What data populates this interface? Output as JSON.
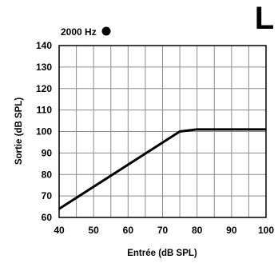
{
  "corner_label": "L",
  "chart_data": {
    "type": "line",
    "xlabel": "Entrée (dB SPL)",
    "ylabel": "Sortie (dB SPL)",
    "xlim": [
      40,
      100
    ],
    "ylim": [
      60,
      140
    ],
    "xticks": [
      40,
      50,
      60,
      70,
      80,
      90,
      100
    ],
    "yticks": [
      60,
      70,
      80,
      90,
      100,
      110,
      120,
      130,
      140
    ],
    "grid": true,
    "legend": {
      "placement": "top-left",
      "marker": "filled-circle",
      "label": "2000 Hz"
    },
    "series": [
      {
        "name": "2000 Hz",
        "color": "#000000",
        "x": [
          40,
          75,
          80,
          100
        ],
        "y": [
          64,
          100,
          101,
          101
        ]
      }
    ]
  }
}
